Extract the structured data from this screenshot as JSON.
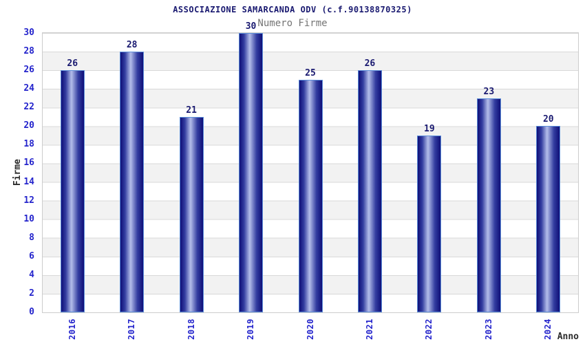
{
  "chart_data": {
    "type": "bar",
    "title": "ASSOCIAZIONE SAMARCANDA ODV (c.f.90138870325)",
    "subtitle": "Numero Firme",
    "xlabel": "Anno",
    "ylabel": "Firme",
    "categories": [
      "2016",
      "2017",
      "2018",
      "2019",
      "2020",
      "2021",
      "2022",
      "2023",
      "2024"
    ],
    "values": [
      26,
      28,
      21,
      30,
      25,
      26,
      19,
      23,
      20
    ],
    "ylim": [
      0,
      30
    ],
    "ytick_step": 2,
    "grid": true,
    "legend": false,
    "band_fill": "alternating horizontal white/gray bands",
    "colors": {
      "title": "#191970",
      "subtitle": "#757575",
      "tick_label": "#2424cc",
      "value_label": "#191970",
      "axis_title": "#2b2b2b",
      "bar_edge": "#0f0f78",
      "bar_highlight": "#b4beea",
      "bar_border": "#5b8dd9",
      "gridline": "#d8d8d8",
      "band_gray": "#f2f2f2"
    }
  }
}
